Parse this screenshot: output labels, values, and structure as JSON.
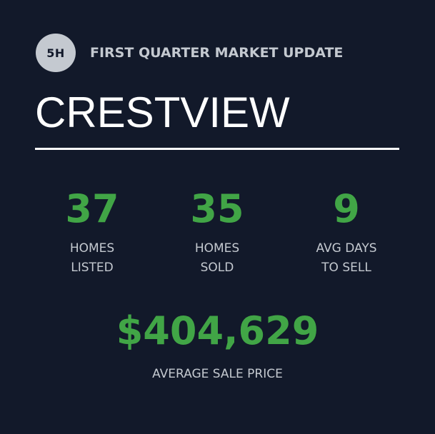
{
  "header": {
    "badge": "5H",
    "subtitle": "FIRST QUARTER MARKET UPDATE",
    "title": "CRESTVIEW"
  },
  "stats": [
    {
      "value": "37",
      "label_line1": "HOMES",
      "label_line2": "LISTED"
    },
    {
      "value": "35",
      "label_line1": "HOMES",
      "label_line2": "SOLD"
    },
    {
      "value": "9",
      "label_line1": "AVG DAYS",
      "label_line2": "TO SELL"
    }
  ],
  "price": {
    "value": "$404,629",
    "label": "AVERAGE SALE PRICE"
  },
  "colors": {
    "background": "#12192a",
    "accent_green": "#41a546",
    "muted_text": "#c4c9d0",
    "title": "#ffffff"
  }
}
